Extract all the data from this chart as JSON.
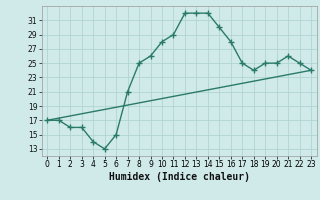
{
  "title": "",
  "xlabel": "Humidex (Indice chaleur)",
  "bg_color": "#d0eaea",
  "line_color": "#2a7a6a",
  "curve_x": [
    0,
    1,
    2,
    3,
    4,
    5,
    6,
    7,
    8,
    9,
    10,
    11,
    12,
    13,
    14,
    15,
    16,
    17,
    18,
    19,
    20,
    21,
    22,
    23
  ],
  "curve_y": [
    17,
    17,
    16,
    16,
    14,
    13,
    15,
    21,
    25,
    26,
    28,
    29,
    32,
    32,
    32,
    30,
    28,
    25,
    24,
    25,
    25,
    26,
    25,
    24
  ],
  "trend_x": [
    0,
    23
  ],
  "trend_y": [
    17,
    24
  ],
  "xlim": [
    -0.5,
    23.5
  ],
  "ylim": [
    12,
    33
  ],
  "yticks": [
    13,
    15,
    17,
    19,
    21,
    23,
    25,
    27,
    29,
    31
  ],
  "xtick_labels": [
    "0",
    "1",
    "2",
    "3",
    "4",
    "5",
    "6",
    "7",
    "8",
    "9",
    "10",
    "11",
    "12",
    "13",
    "14",
    "15",
    "16",
    "17",
    "18",
    "19",
    "20",
    "21",
    "22",
    "23"
  ],
  "grid_color": "#b0d4d4",
  "marker": "+",
  "markersize": 5,
  "linewidth": 1.0,
  "tick_fontsize": 5.5,
  "xlabel_fontsize": 7.0
}
